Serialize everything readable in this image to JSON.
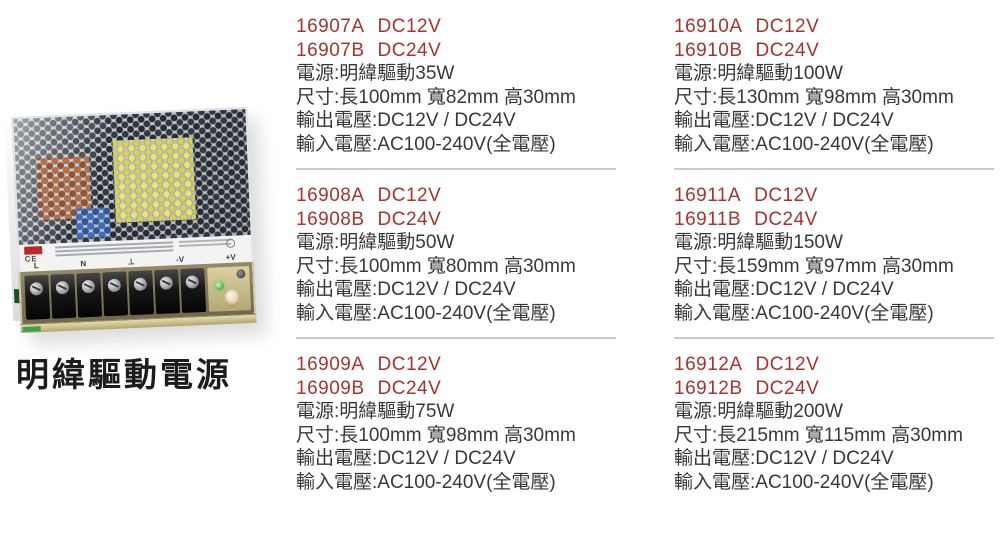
{
  "page_title": "明緯驅動電源",
  "photo": {
    "description": "enclosed-switching-power-supply",
    "ce_mark": "CE",
    "terminal_labels": [
      "L",
      "N",
      "⊥",
      "-V",
      "+V"
    ]
  },
  "field_labels": {
    "power": "電源:",
    "size": "尺寸:",
    "output": "輸出電壓:",
    "input": "輸入電壓:"
  },
  "products": [
    {
      "model_a": "16907A",
      "volt_a": "DC12V",
      "model_b": "16907B",
      "volt_b": "DC24V",
      "power": "明緯驅動35W",
      "size": "長100mm 寬82mm 高30mm",
      "output": "DC12V / DC24V",
      "input": "AC100-240V(全電壓)"
    },
    {
      "model_a": "16908A",
      "volt_a": "DC12V",
      "model_b": "16908B",
      "volt_b": "DC24V",
      "power": "明緯驅動50W",
      "size": "長100mm 寬80mm 高30mm",
      "output": "DC12V / DC24V",
      "input": "AC100-240V(全電壓)"
    },
    {
      "model_a": "16909A",
      "volt_a": "DC12V",
      "model_b": "16909B",
      "volt_b": "DC24V",
      "power": "明緯驅動75W",
      "size": "長100mm 寬98mm 高30mm",
      "output": "DC12V / DC24V",
      "input": "AC100-240V(全電壓)"
    },
    {
      "model_a": "16910A",
      "volt_a": "DC12V",
      "model_b": "16910B",
      "volt_b": "DC24V",
      "power": "明緯驅動100W",
      "size": "長130mm 寬98mm 高30mm",
      "output": "DC12V / DC24V",
      "input": "AC100-240V(全電壓)"
    },
    {
      "model_a": "16911A",
      "volt_a": "DC12V",
      "model_b": "16911B",
      "volt_b": "DC24V",
      "power": "明緯驅動150W",
      "size": "長159mm 寬97mm 高30mm",
      "output": "DC12V / DC24V",
      "input": "AC100-240V(全電壓)"
    },
    {
      "model_a": "16912A",
      "volt_a": "DC12V",
      "model_b": "16912B",
      "volt_b": "DC24V",
      "power": "明緯驅動200W",
      "size": "長215mm 寬115mm 高30mm",
      "output": "DC12V / DC24V",
      "input": "AC100-240V(全電壓)"
    }
  ],
  "colors": {
    "model_red": "#a5332e",
    "body_text": "#383838",
    "divider": "#cbcbcb",
    "background": "#ffffff"
  }
}
